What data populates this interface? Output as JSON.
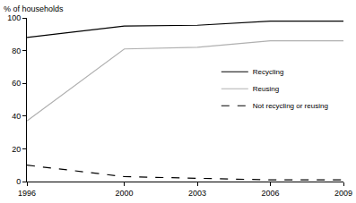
{
  "chart_data": {
    "type": "line",
    "ylabel": "% of households",
    "x": [
      1996,
      2000,
      2003,
      2006,
      2009
    ],
    "series": [
      {
        "name": "Recycling",
        "color": "#000000",
        "line_style": "solid",
        "values": [
          88,
          95,
          95.5,
          98,
          98
        ]
      },
      {
        "name": "Reusing",
        "color": "#b0b0b0",
        "line_style": "solid",
        "values": [
          37,
          81,
          82,
          86,
          86
        ]
      },
      {
        "name": "Not recycling or reusing",
        "color": "#000000",
        "line_style": "dashed",
        "values": [
          10,
          3,
          2,
          1,
          1
        ]
      }
    ],
    "xlim": [
      1996,
      2009
    ],
    "xticks": [
      1996,
      2000,
      2003,
      2006,
      2009
    ],
    "ylim": [
      0,
      100
    ],
    "yticks": [
      0,
      20,
      40,
      60,
      80,
      100
    ],
    "grid": false,
    "legend": "right"
  }
}
